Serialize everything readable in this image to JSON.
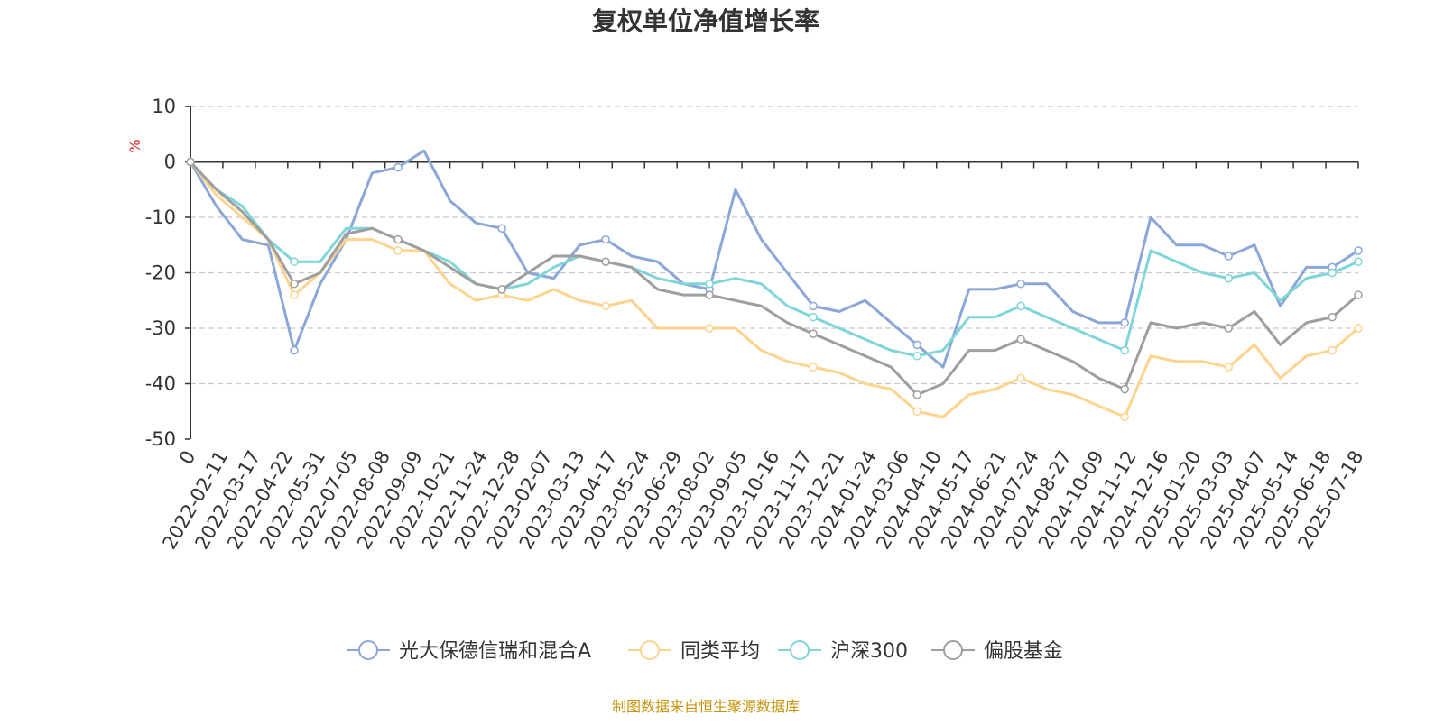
{
  "chart_data": {
    "type": "line",
    "title": "复权单位净值增长率",
    "ylabel": "%",
    "ylim": [
      -50,
      10
    ],
    "yticks": [
      10,
      0,
      -10,
      -20,
      -30,
      -40,
      -50
    ],
    "grid": true,
    "legend_position": "bottom",
    "x_ticks": [
      "0",
      "2022-02-11",
      "2022-03-17",
      "2022-04-22",
      "2022-05-31",
      "2022-07-05",
      "2022-08-08",
      "2022-09-09",
      "2022-10-21",
      "2022-11-24",
      "2022-12-28",
      "2023-02-07",
      "2023-03-13",
      "2023-04-17",
      "2023-05-24",
      "2023-06-29",
      "2023-08-02",
      "2023-09-05",
      "2023-10-16",
      "2023-11-17",
      "2023-12-21",
      "2024-01-24",
      "2024-03-06",
      "2024-04-10",
      "2024-05-17",
      "2024-06-21",
      "2024-07-24",
      "2024-08-27",
      "2024-10-09",
      "2024-11-12",
      "2024-12-16",
      "2025-01-20",
      "2025-03-03",
      "2025-04-07",
      "2025-05-14",
      "2025-06-18",
      "2025-07-18"
    ],
    "series": [
      {
        "name": "光大保德信瑞和混合A",
        "color": "#8aa7d8",
        "values": [
          0,
          -8,
          -14,
          -15,
          -34,
          -22,
          -14,
          -2,
          -1,
          2,
          -7,
          -11,
          -12,
          -20,
          -21,
          -15,
          -14,
          -17,
          -18,
          -22,
          -23,
          -5,
          -14,
          -20,
          -26,
          -27,
          -25,
          -29,
          -33,
          -37,
          -23,
          -23,
          -22,
          -22,
          -27,
          -29,
          -29,
          -10,
          -15,
          -15,
          -17,
          -15,
          -26,
          -19,
          -19,
          -16
        ]
      },
      {
        "name": "同类平均",
        "color": "#fdd38d",
        "values": [
          0,
          -6,
          -10,
          -14,
          -24,
          -20,
          -14,
          -14,
          -16,
          -16,
          -22,
          -25,
          -24,
          -25,
          -23,
          -25,
          -26,
          -25,
          -30,
          -30,
          -30,
          -30,
          -34,
          -36,
          -37,
          -38,
          -40,
          -41,
          -45,
          -46,
          -42,
          -41,
          -39,
          -41,
          -42,
          -44,
          -46,
          -35,
          -36,
          -36,
          -37,
          -33,
          -39,
          -35,
          -34,
          -30
        ]
      },
      {
        "name": "沪深300",
        "color": "#7fd5d7",
        "values": [
          0,
          -5,
          -8,
          -14,
          -18,
          -18,
          -12,
          -12,
          -14,
          -16,
          -18,
          -22,
          -23,
          -22,
          -19,
          -17,
          -18,
          -19,
          -21,
          -22,
          -22,
          -21,
          -22,
          -26,
          -28,
          -30,
          -32,
          -34,
          -35,
          -34,
          -28,
          -28,
          -26,
          -28,
          -30,
          -32,
          -34,
          -16,
          -18,
          -20,
          -21,
          -20,
          -25,
          -21,
          -20,
          -18
        ]
      },
      {
        "name": "偏股基金",
        "color": "#9e9e9e",
        "values": [
          0,
          -5,
          -9,
          -14,
          -22,
          -20,
          -13,
          -12,
          -14,
          -16,
          -19,
          -22,
          -23,
          -20,
          -17,
          -17,
          -18,
          -19,
          -23,
          -24,
          -24,
          -25,
          -26,
          -29,
          -31,
          -33,
          -35,
          -37,
          -42,
          -40,
          -34,
          -34,
          -32,
          -34,
          -36,
          -39,
          -41,
          -29,
          -30,
          -29,
          -30,
          -27,
          -33,
          -29,
          -28,
          -24
        ]
      }
    ]
  },
  "source_note": {
    "text": "制图数据来自恒生聚源数据库",
    "color": "#c8930a"
  },
  "colors": {
    "axis": "#333333",
    "grid": "#c8c8c8",
    "ylabel": "#e02020"
  }
}
